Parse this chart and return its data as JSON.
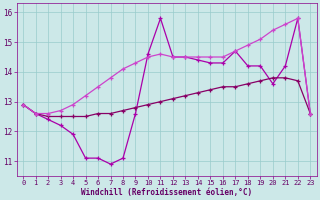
{
  "xlabel": "Windchill (Refroidissement éolien,°C)",
  "x": [
    0,
    1,
    2,
    3,
    4,
    5,
    6,
    7,
    8,
    9,
    10,
    11,
    12,
    13,
    14,
    15,
    16,
    17,
    18,
    19,
    20,
    21,
    22,
    23
  ],
  "line_bottom": [
    12.9,
    12.6,
    12.4,
    12.2,
    11.9,
    11.1,
    11.1,
    10.9,
    11.1,
    12.6,
    14.6,
    15.8,
    14.5,
    14.5,
    14.4,
    14.3,
    14.3,
    14.7,
    14.2,
    14.2,
    13.6,
    14.2,
    15.8,
    12.6
  ],
  "line_mid": [
    12.9,
    12.6,
    12.5,
    12.5,
    12.5,
    12.5,
    12.6,
    12.6,
    12.7,
    12.8,
    12.9,
    13.0,
    13.1,
    13.2,
    13.3,
    13.4,
    13.5,
    13.5,
    13.6,
    13.7,
    13.8,
    13.8,
    13.7,
    12.6
  ],
  "line_top": [
    12.9,
    12.6,
    12.6,
    12.7,
    12.9,
    13.2,
    13.5,
    13.8,
    14.1,
    14.3,
    14.5,
    14.6,
    14.5,
    14.5,
    14.5,
    14.5,
    14.5,
    14.7,
    14.9,
    15.1,
    15.4,
    15.6,
    15.8,
    12.6
  ],
  "color_bottom": "#aa00aa",
  "color_mid": "#880066",
  "color_top": "#cc44cc",
  "bg_color": "#cce8e8",
  "grid_color": "#99cccc",
  "spine_color": "#880088",
  "tick_color": "#880088",
  "label_color": "#660066",
  "ylim": [
    10.5,
    16.3
  ],
  "xlim": [
    -0.5,
    23.5
  ],
  "yticks": [
    11,
    12,
    13,
    14,
    15,
    16
  ],
  "xticks": [
    0,
    1,
    2,
    3,
    4,
    5,
    6,
    7,
    8,
    9,
    10,
    11,
    12,
    13,
    14,
    15,
    16,
    17,
    18,
    19,
    20,
    21,
    22,
    23
  ]
}
